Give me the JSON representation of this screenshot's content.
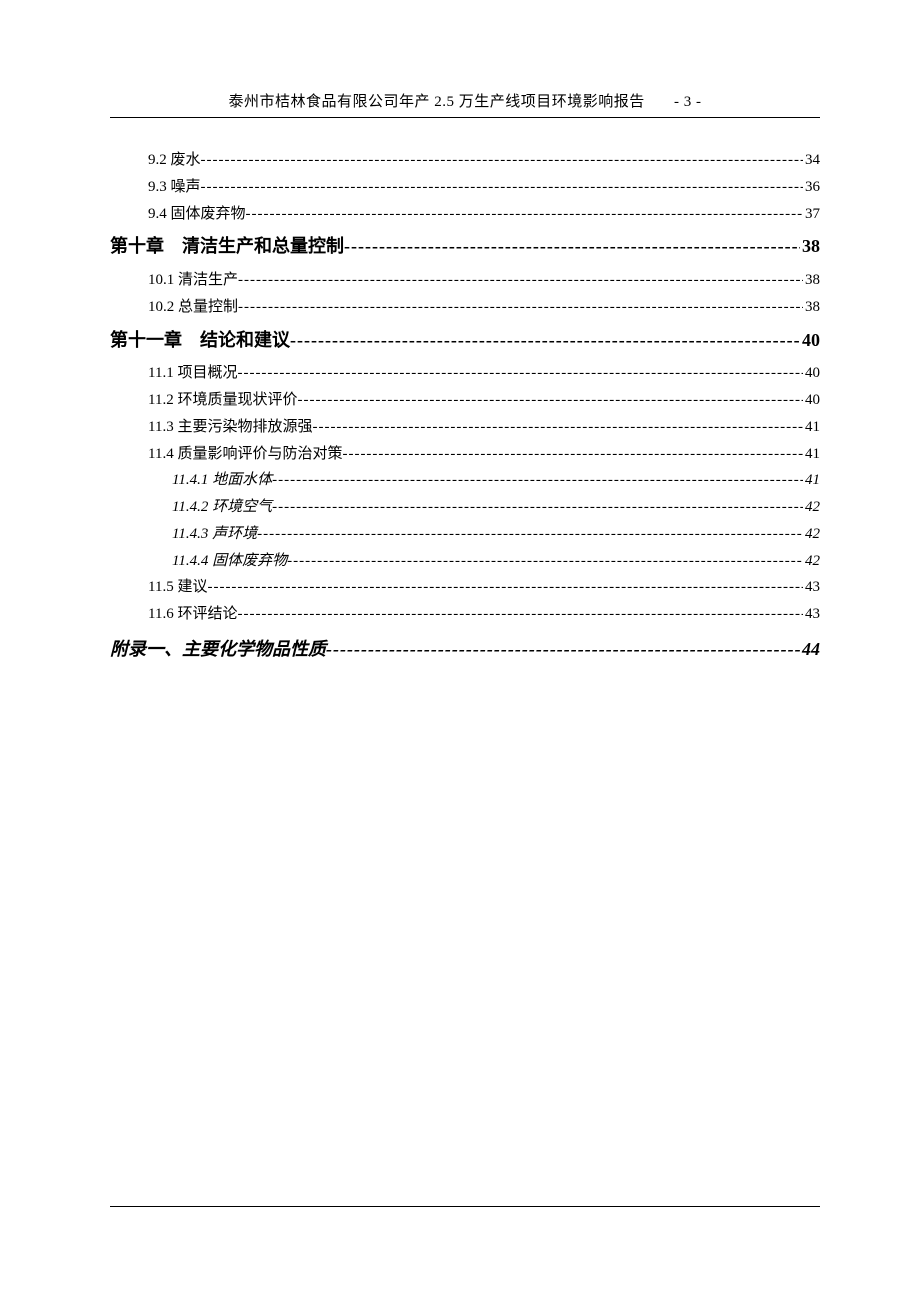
{
  "header": {
    "title": "泰州市桔林食品有限公司年产 2.5 万生产线项目环境影响报告",
    "page_label": "- 3 -"
  },
  "toc": [
    {
      "level": "level-2",
      "label": "9.2 废水",
      "page": "34"
    },
    {
      "level": "level-2",
      "label": "9.3 噪声",
      "page": "36"
    },
    {
      "level": "level-2",
      "label": "9.4 固体废弃物",
      "page": "37"
    },
    {
      "level": "level-1",
      "label": "第十章　清洁生产和总量控制",
      "page": "38"
    },
    {
      "level": "level-2",
      "label": "10.1 清洁生产",
      "page": "38"
    },
    {
      "level": "level-2",
      "label": "10.2 总量控制",
      "page": "38"
    },
    {
      "level": "level-1",
      "label": "第十一章　结论和建议",
      "page": "40"
    },
    {
      "level": "level-2",
      "label": "11.1 项目概况",
      "page": "40"
    },
    {
      "level": "level-2",
      "label": "11.2 环境质量现状评价",
      "page": "40"
    },
    {
      "level": "level-2",
      "label": "11.3 主要污染物排放源强",
      "page": "41"
    },
    {
      "level": "level-2",
      "label": "11.4 质量影响评价与防治对策",
      "page": "41"
    },
    {
      "level": "level-3",
      "label": "11.4.1 地面水体",
      "page": "41"
    },
    {
      "level": "level-3",
      "label": "11.4.2 环境空气",
      "page": "42"
    },
    {
      "level": "level-3",
      "label": "11.4.3 声环境",
      "page": "42"
    },
    {
      "level": "level-3",
      "label": "11.4.4 固体废弃物",
      "page": "42"
    },
    {
      "level": "level-2",
      "label": "11.5 建议",
      "page": "43"
    },
    {
      "level": "level-2",
      "label": "11.6 环评结论",
      "page": "43"
    },
    {
      "level": "appendix",
      "label": "附录一、主要化学物品性质",
      "page": "44"
    }
  ]
}
